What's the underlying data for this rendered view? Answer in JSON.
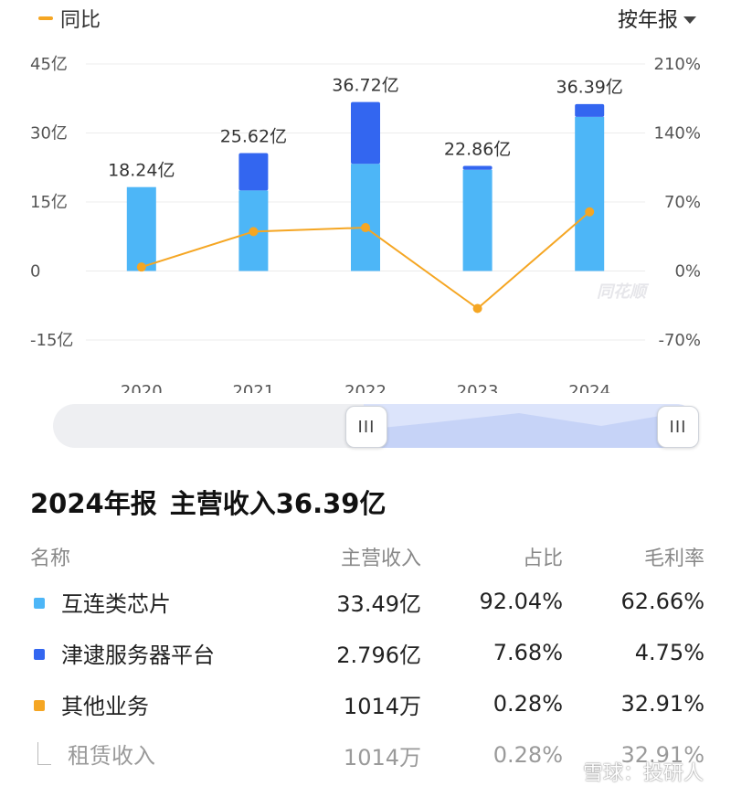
{
  "legend": {
    "label": "同比",
    "color": "#f5a623"
  },
  "period_selector": {
    "label": "按年报",
    "icon": "caret-down-icon"
  },
  "watermark": "同花顺",
  "chart_data": {
    "type": "bar",
    "categories": [
      "2020",
      "2021",
      "2022",
      "2023",
      "2024"
    ],
    "series": [
      {
        "values": [
          18.24,
          17.5,
          23.3,
          22.0,
          33.49
        ],
        "color": "#4db6f7"
      },
      {
        "values": [
          0.0,
          8.12,
          13.42,
          0.86,
          2.796
        ],
        "color": "#3366f0"
      }
    ],
    "totals": [
      18.24,
      25.62,
      36.72,
      22.86,
      36.39
    ],
    "total_labels": [
      "18.24亿",
      "25.62亿",
      "36.72亿",
      "22.86亿",
      "36.39亿"
    ],
    "line": {
      "type": "line",
      "axis": "right",
      "values": [
        4,
        40,
        44,
        -38,
        60
      ],
      "color": "#f5a623"
    },
    "y_left": {
      "ticks": [
        "45亿",
        "30亿",
        "15亿",
        "0",
        "-15亿"
      ],
      "tick_values": [
        45,
        30,
        15,
        0,
        -15
      ],
      "ylim": [
        -15,
        45
      ]
    },
    "y_right": {
      "ticks": [
        "210%",
        "140%",
        "70%",
        "0%",
        "-70%"
      ],
      "tick_values": [
        210,
        140,
        70,
        0,
        -70
      ],
      "ylim": [
        -70,
        210
      ]
    },
    "grid": true
  },
  "summary": {
    "lead": "2024年报",
    "title": "主营收入36.39亿"
  },
  "table": {
    "headers": [
      "名称",
      "主营收入",
      "占比",
      "毛利率"
    ],
    "rows": [
      {
        "name": "互连类芯片",
        "revenue": "33.49亿",
        "share": "92.04%",
        "margin": "62.66%",
        "color": "#4db6f7"
      },
      {
        "name": "津逮服务器平台",
        "revenue": "2.796亿",
        "share": "7.68%",
        "margin": "4.75%",
        "color": "#3366f0"
      },
      {
        "name": "其他业务",
        "revenue": "1014万",
        "share": "0.28%",
        "margin": "32.91%",
        "color": "#f5a623"
      }
    ],
    "sub_row": {
      "name": "租赁收入",
      "revenue": "1014万",
      "share": "0.28%",
      "margin": "32.91%"
    }
  },
  "source_mark": "雪球：投研人"
}
